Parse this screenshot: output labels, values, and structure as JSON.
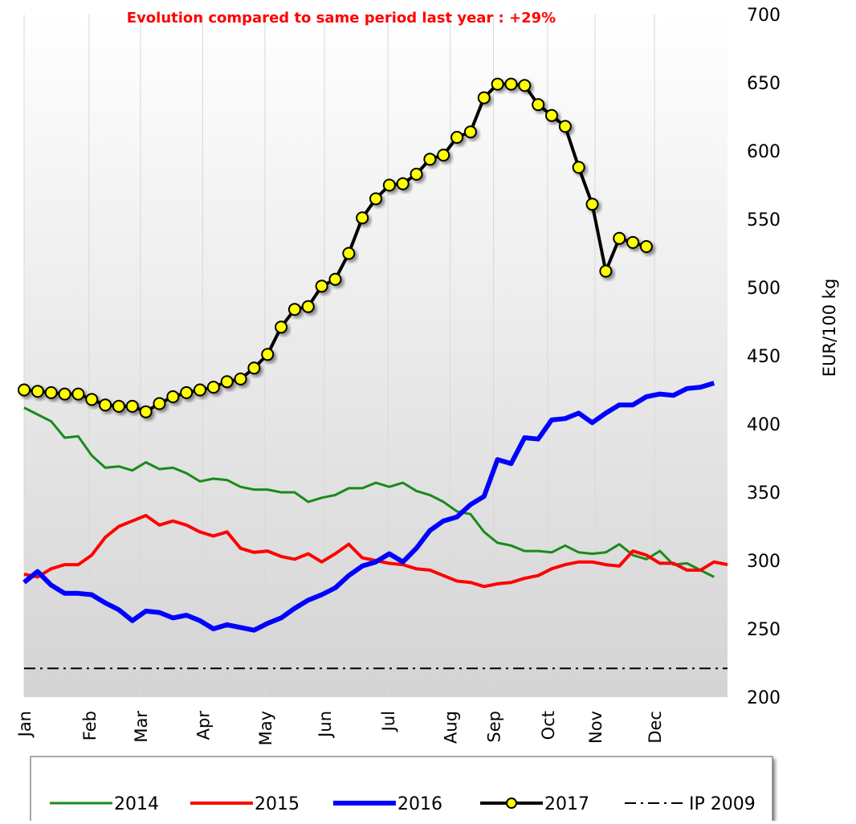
{
  "chart_data": {
    "type": "line",
    "title": "Evolution compared to same period last year : +29%",
    "y_label": "EUR/100 kg",
    "x": [
      1,
      2,
      3,
      4,
      5,
      6,
      7,
      8,
      9,
      10,
      11,
      12,
      13,
      14,
      15,
      16,
      17,
      18,
      19,
      20,
      21,
      22,
      23,
      24,
      25,
      26,
      27,
      28,
      29,
      30,
      31,
      32,
      33,
      34,
      35,
      36,
      37,
      38,
      39,
      40,
      41,
      42,
      43,
      44,
      45,
      46,
      47,
      48,
      49,
      50,
      51,
      52,
      53
    ],
    "xlim": [
      1,
      53
    ],
    "xticks": [
      {
        "value": 1,
        "label": "Jan"
      },
      {
        "value": 5.8,
        "label": "Feb"
      },
      {
        "value": 9.6,
        "label": "Mar"
      },
      {
        "value": 14.2,
        "label": "Apr"
      },
      {
        "value": 18.8,
        "label": "May"
      },
      {
        "value": 23.2,
        "label": "Jun"
      },
      {
        "value": 27.9,
        "label": "Jul"
      },
      {
        "value": 32.5,
        "label": "Aug"
      },
      {
        "value": 35.7,
        "label": "Sep"
      },
      {
        "value": 39.7,
        "label": "Oct"
      },
      {
        "value": 43.2,
        "label": "Nov"
      },
      {
        "value": 47.6,
        "label": "Dec"
      }
    ],
    "ylim": [
      200,
      700
    ],
    "yticks": [
      200,
      250,
      300,
      350,
      400,
      450,
      500,
      550,
      600,
      650,
      700
    ],
    "grid": true,
    "series": [
      {
        "name": "2014",
        "color": "#1a8a1a",
        "width": 3,
        "values": [
          412,
          407,
          402,
          390,
          391,
          377,
          368,
          369,
          366,
          372,
          367,
          368,
          364,
          358,
          360,
          359,
          354,
          352,
          352,
          350,
          350,
          343,
          346,
          348,
          353,
          353,
          357,
          354,
          357,
          351,
          348,
          343,
          336,
          334,
          321,
          313,
          311,
          307,
          307,
          306,
          311,
          306,
          305,
          306,
          312,
          304,
          301,
          307,
          297,
          298,
          293,
          288,
          null
        ]
      },
      {
        "name": "2015",
        "color": "#ff0000",
        "width": 4,
        "values": [
          290,
          288,
          294,
          297,
          297,
          304,
          317,
          325,
          329,
          333,
          326,
          329,
          326,
          321,
          318,
          321,
          309,
          306,
          307,
          303,
          301,
          305,
          299,
          305,
          312,
          302,
          300,
          298,
          297,
          294,
          293,
          289,
          285,
          284,
          281,
          283,
          284,
          287,
          289,
          294,
          297,
          299,
          299,
          297,
          296,
          307,
          304,
          298,
          298,
          293,
          293,
          299,
          297
        ]
      },
      {
        "name": "2016",
        "color": "#0000ff",
        "width": 6,
        "values": [
          284,
          292,
          282,
          276,
          276,
          275,
          269,
          264,
          256,
          263,
          262,
          258,
          260,
          256,
          250,
          253,
          251,
          249,
          254,
          258,
          265,
          271,
          275,
          280,
          289,
          296,
          299,
          305,
          299,
          309,
          322,
          329,
          332,
          341,
          347,
          374,
          371,
          390,
          389,
          403,
          404,
          408,
          401,
          408,
          414,
          414,
          420,
          422,
          421,
          426,
          427,
          430,
          null
        ]
      },
      {
        "name": "2017",
        "color": "#000000",
        "width": 4,
        "marker_color": "#ffff00",
        "values": [
          425,
          424,
          423,
          422,
          422,
          418,
          414,
          413,
          413,
          409,
          415,
          420,
          423,
          425,
          427,
          431,
          433,
          441,
          451,
          471,
          484,
          486,
          501,
          506,
          525,
          551,
          565,
          575,
          576,
          583,
          594,
          597,
          610,
          614,
          639,
          649,
          649,
          648,
          634,
          626,
          618,
          588,
          561,
          512,
          536,
          533,
          530,
          null,
          null,
          null,
          null,
          null,
          null
        ]
      },
      {
        "name": "IP 2009",
        "color": "#000000",
        "width": 2,
        "dash": "dashdot",
        "value": 221
      }
    ]
  }
}
